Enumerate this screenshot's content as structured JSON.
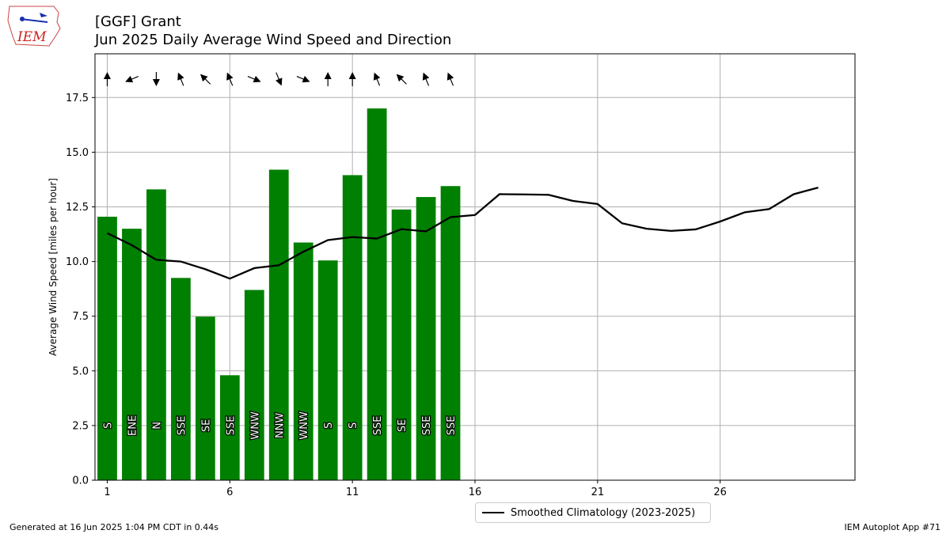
{
  "header": {
    "title_line1": "[GGF] Grant",
    "title_line2": "Jun 2025 Daily Average Wind Speed and Direction",
    "logo_text": "IEM"
  },
  "footer": {
    "generated": "Generated at 16 Jun 2025 1:04 PM CDT in 0.44s",
    "app": "IEM Autoplot App #71"
  },
  "legend": {
    "climatology_label": "Smoothed Climatology (2023-2025)"
  },
  "colors": {
    "bars": "#008000",
    "climatology_line": "#000000",
    "grid": "#b0b0b0"
  },
  "chart_data": {
    "type": "bar",
    "title": "Jun 2025 Daily Average Wind Speed and Direction",
    "ylabel": "Average Wind Speed [miles per hour]",
    "xlabel": "",
    "xlim": [
      0.5,
      31.5
    ],
    "ylim": [
      0,
      19.5
    ],
    "xticks": [
      1,
      6,
      11,
      16,
      21,
      26
    ],
    "yticks": [
      "0.0",
      "2.5",
      "5.0",
      "7.5",
      "10.0",
      "12.5",
      "15.0",
      "17.5"
    ],
    "grid": true,
    "legend_position": "bottom-center",
    "series": [
      {
        "type": "bar",
        "days": [
          1,
          2,
          3,
          4,
          5,
          6,
          7,
          8,
          9,
          10,
          11,
          12,
          13,
          14,
          15
        ],
        "values": [
          12.05,
          11.5,
          13.3,
          9.25,
          7.48,
          4.8,
          8.7,
          14.2,
          10.87,
          10.05,
          13.95,
          17.0,
          12.38,
          12.95,
          13.45
        ],
        "directions": [
          "S",
          "ENE",
          "N",
          "SSE",
          "SE",
          "SSE",
          "WNW",
          "NNW",
          "WNW",
          "S",
          "S",
          "SSE",
          "SE",
          "SSE",
          "SSE"
        ]
      },
      {
        "name": "Smoothed Climatology (2023-2025)",
        "type": "line",
        "days": [
          1,
          2,
          3,
          4,
          5,
          6,
          7,
          8,
          9,
          10,
          11,
          12,
          13,
          14,
          15,
          16,
          17,
          18,
          19,
          20,
          21,
          22,
          23,
          24,
          25,
          26,
          27,
          28,
          29,
          30
        ],
        "values": [
          11.3,
          10.75,
          10.08,
          10.0,
          9.65,
          9.22,
          9.7,
          9.83,
          10.45,
          10.98,
          11.12,
          11.05,
          11.48,
          11.38,
          12.03,
          12.13,
          13.08,
          13.07,
          13.05,
          12.77,
          12.63,
          11.75,
          11.5,
          11.4,
          11.47,
          11.83,
          12.25,
          12.4,
          13.08,
          13.38
        ]
      }
    ]
  }
}
